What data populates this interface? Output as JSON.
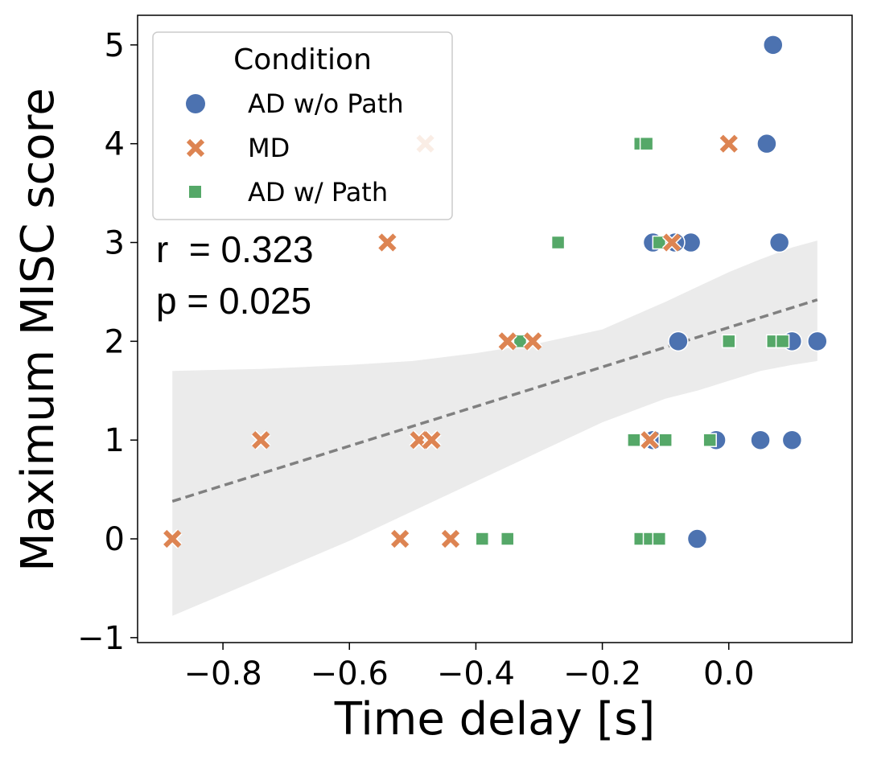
{
  "chart_data": {
    "type": "scatter",
    "xlabel": "Time delay [s]",
    "ylabel": "Maximum MISC score",
    "xlim": [
      -0.935,
      0.195
    ],
    "ylim": [
      -1.05,
      5.3
    ],
    "xticks": [
      -0.8,
      -0.6,
      -0.4,
      -0.2,
      0.0
    ],
    "xtick_labels": [
      "−0.8",
      "−0.6",
      "−0.4",
      "−0.2",
      "0.0"
    ],
    "yticks": [
      -1,
      0,
      1,
      2,
      3,
      4,
      5
    ],
    "ytick_labels": [
      "−1",
      "0",
      "1",
      "2",
      "3",
      "4",
      "5"
    ],
    "grid": false,
    "legend": {
      "title": "Condition",
      "placement": "top-left",
      "entries": [
        "AD w/o Path",
        "MD",
        "AD w/ Path"
      ]
    },
    "annotations": [
      "r  = 0.323",
      "p = 0.025"
    ],
    "series": [
      {
        "name": "AD w/o Path",
        "marker": "circle",
        "color": "#4c72b0",
        "x": [
          0.07,
          0.06,
          0.08,
          -0.06,
          -0.085,
          -0.12,
          0.1,
          0.14,
          -0.08,
          0.05,
          0.1,
          -0.02,
          -0.12,
          -0.05
        ],
        "y": [
          5,
          4,
          3,
          3,
          3,
          3,
          2,
          2,
          2,
          1,
          1,
          1,
          1,
          0
        ]
      },
      {
        "name": "MD",
        "marker": "x",
        "color": "#dd8452",
        "x": [
          -0.48,
          0.0,
          -0.54,
          -0.09,
          -0.35,
          -0.31,
          -0.74,
          -0.49,
          -0.47,
          -0.125,
          -0.88,
          -0.52,
          -0.44
        ],
        "y": [
          4,
          4,
          3,
          3,
          2,
          2,
          1,
          1,
          1,
          1,
          0,
          0,
          0
        ]
      },
      {
        "name": "AD w/ Path",
        "marker": "square",
        "color": "#55a868",
        "x": [
          -0.14,
          -0.13,
          -0.27,
          -0.11,
          -0.33,
          0.0,
          0.07,
          0.085,
          -0.15,
          -0.1,
          -0.03,
          -0.39,
          -0.35,
          -0.14,
          -0.125,
          -0.11
        ],
        "y": [
          4,
          4,
          3,
          3,
          2,
          2,
          2,
          2,
          1,
          1,
          1,
          0,
          0,
          0,
          0,
          0
        ]
      }
    ],
    "regression": {
      "style": "dashed",
      "color": "#808080",
      "x": [
        -0.88,
        0.14
      ],
      "y": [
        0.38,
        2.42
      ],
      "ci_color": "#ebebeb",
      "ci_x": [
        -0.88,
        -0.74,
        -0.6,
        -0.5,
        -0.4,
        -0.3,
        -0.2,
        -0.1,
        -0.05,
        0.0,
        0.05,
        0.1,
        0.14
      ],
      "ci_lower": [
        -0.78,
        -0.4,
        -0.02,
        0.28,
        0.58,
        0.88,
        1.18,
        1.42,
        1.5,
        1.6,
        1.7,
        1.76,
        1.8
      ],
      "ci_upper": [
        1.7,
        1.72,
        1.76,
        1.8,
        1.88,
        1.98,
        2.12,
        2.4,
        2.55,
        2.7,
        2.83,
        2.95,
        3.02
      ]
    }
  }
}
